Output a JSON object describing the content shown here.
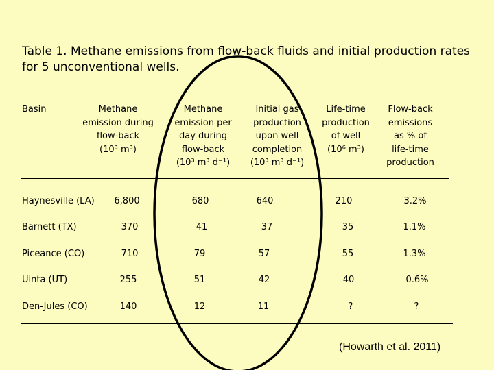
{
  "title": "Table 1.  Methane emissions from flow-back fluids and initial production rates for 5 unconventional wells.",
  "columns": [
    {
      "lines": [
        "Basin"
      ]
    },
    {
      "lines": [
        "Methane",
        "emission during",
        "flow-back",
        "(10³ m³)"
      ]
    },
    {
      "lines": [
        "Methane",
        "emission per",
        "day during",
        "flow-back",
        "(10³ m³ d⁻¹)"
      ]
    },
    {
      "lines": [
        "Initial gas",
        "production",
        "upon well",
        "completion",
        "(10³ m³ d⁻¹)"
      ]
    },
    {
      "lines": [
        "Life-time",
        "production",
        "of well",
        "(10⁶ m³)"
      ]
    },
    {
      "lines": [
        "Flow-back",
        "emissions",
        "as % of",
        "life-time",
        "production"
      ]
    }
  ],
  "rows": [
    {
      "basin": "Haynesville  (LA)",
      "values": [
        "6,800",
        "680",
        "640",
        "210",
        "3.2%"
      ]
    },
    {
      "basin": "Barnett (TX)",
      "values": [
        "370",
        "41",
        "37",
        "35",
        "1.1%"
      ]
    },
    {
      "basin": "Piceance (CO)",
      "values": [
        "710",
        "79",
        "57",
        "55",
        "1.3%"
      ]
    },
    {
      "basin": "Uinta (UT)",
      "values": [
        "255",
        "51",
        "42",
        "40",
        "0.6%"
      ]
    },
    {
      "basin": "Den-Jules (CO)",
      "values": [
        "140",
        "12",
        "11",
        "?",
        "?"
      ]
    }
  ],
  "citation": "(Howarth et al. 2011)",
  "colors": {
    "background": "#fdfcc0",
    "text": "#000000"
  }
}
